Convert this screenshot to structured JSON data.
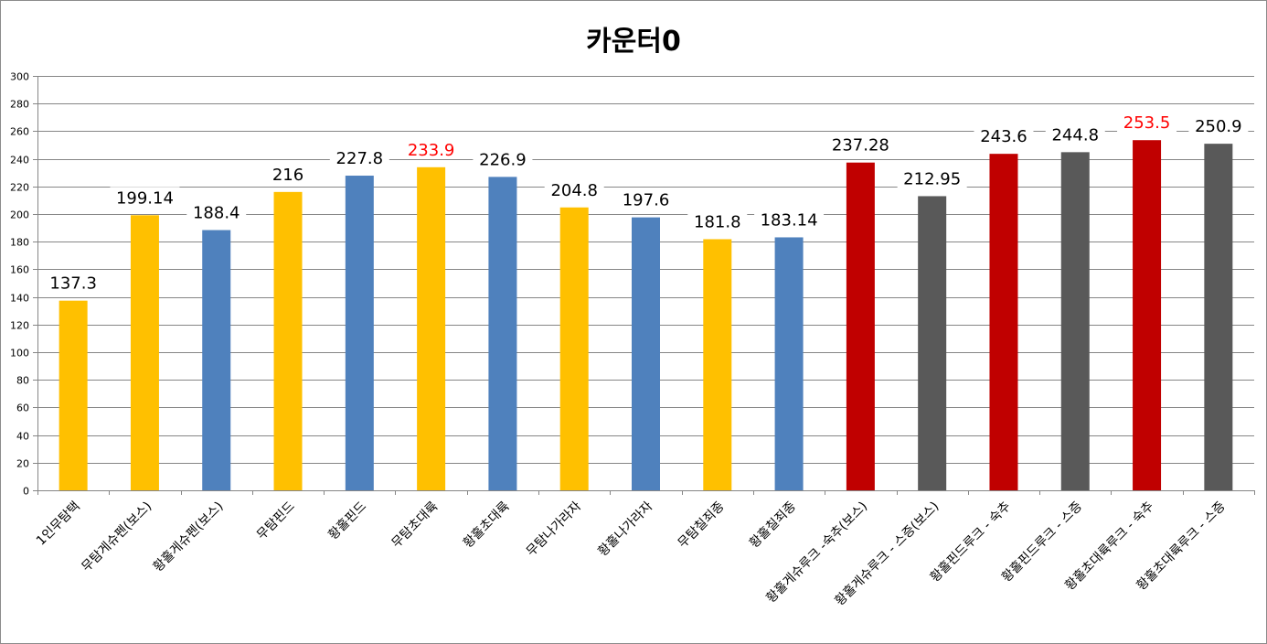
{
  "chart_data": {
    "type": "bar",
    "title": "카운터0",
    "ylim": [
      0,
      300
    ],
    "ytick_step": 20,
    "grid": true,
    "legend": "none",
    "categories": [
      "1인무탐택",
      "무탐게슈펜(보스)",
      "황홀게슈펜(보스)",
      "무탐핀드",
      "황홀핀드",
      "무탐초대륙",
      "황홀초대륙",
      "무탐나가라자",
      "황홀나가라자",
      "무탐칠죄종",
      "황홀칠죄종",
      "황홀게슈루크 -숙추(보스)",
      "황홀게슈루크 - 스증(보스)",
      "황홀핀드루크 - 숙추",
      "황홀핀드루크 - 스증",
      "황홀초대륙루크 - 숙추",
      "황홀초대륙루크 - 스증"
    ],
    "values": [
      137.3,
      199.14,
      188.4,
      216,
      227.8,
      233.9,
      226.9,
      204.8,
      197.6,
      181.8,
      183.14,
      237.28,
      212.95,
      243.6,
      244.8,
      253.5,
      250.9
    ],
    "data_labels": [
      "137.3",
      "199.14",
      "188.4",
      "216",
      "227.8",
      "233.9",
      "226.9",
      "204.8",
      "197.6",
      "181.8",
      "183.14",
      "237.28",
      "212.95",
      "243.6",
      "244.8",
      "253.5",
      "250.9"
    ],
    "bar_colors": [
      "#FFC000",
      "#FFC000",
      "#4F81BD",
      "#FFC000",
      "#4F81BD",
      "#FFC000",
      "#4F81BD",
      "#FFC000",
      "#4F81BD",
      "#FFC000",
      "#4F81BD",
      "#C00000",
      "#595959",
      "#C00000",
      "#595959",
      "#C00000",
      "#595959"
    ],
    "label_colors": [
      "#000000",
      "#000000",
      "#000000",
      "#000000",
      "#000000",
      "#FF0000",
      "#000000",
      "#000000",
      "#000000",
      "#000000",
      "#000000",
      "#000000",
      "#000000",
      "#000000",
      "#000000",
      "#FF0000",
      "#000000"
    ]
  }
}
